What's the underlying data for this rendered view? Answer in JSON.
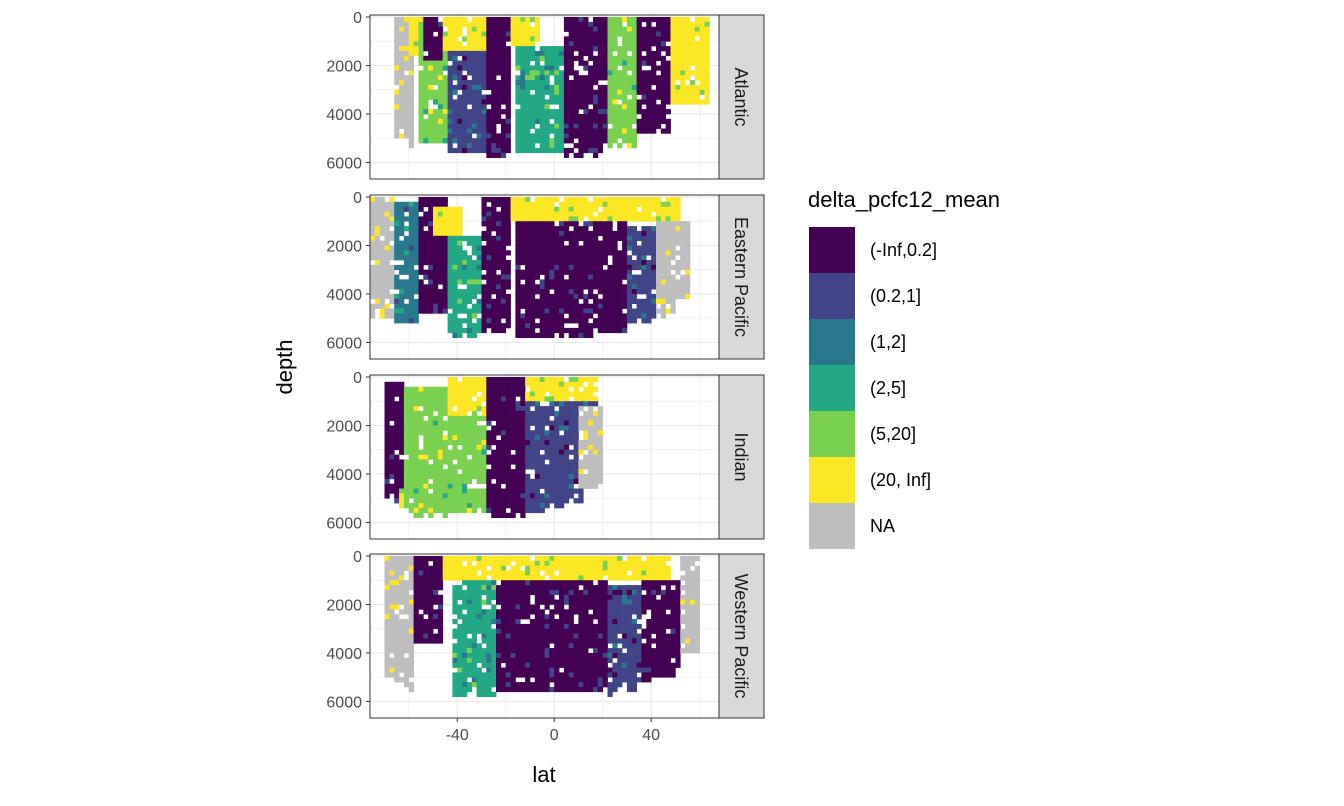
{
  "chart_data": {
    "type": "heatmap",
    "xlabel": "lat",
    "ylabel": "depth",
    "xlim": [
      -76,
      68
    ],
    "ylim": [
      0,
      6600
    ],
    "y_reversed": true,
    "x_ticks": [
      -40,
      0,
      40
    ],
    "x_tick_labels": [
      "-40",
      "0",
      "40"
    ],
    "y_ticks": [
      0,
      2000,
      4000,
      6000
    ],
    "y_tick_labels": [
      "0",
      "2000",
      "4000",
      "6000"
    ],
    "grid": true,
    "legend_position": "right",
    "legend": {
      "title": "delta_pcfc12_mean",
      "entries": [
        {
          "label": "(-Inf,0.2]",
          "color": "#440154"
        },
        {
          "label": "(0.2,1]",
          "color": "#414487"
        },
        {
          "label": "(1,2]",
          "color": "#2A788E"
        },
        {
          "label": "(2,5]",
          "color": "#22A884"
        },
        {
          "label": "(5,20]",
          "color": "#7AD151"
        },
        {
          "label": "(20, Inf]",
          "color": "#FDE725"
        },
        {
          "label": "NA",
          "color": "#BEBEBE"
        }
      ]
    },
    "panels": [
      {
        "name": "Atlantic",
        "lat_range": [
          -70,
          64
        ],
        "regions": [
          {
            "lat": [
              -66,
              -58
            ],
            "depth": [
              0,
              6000
            ],
            "class": "NA"
          },
          {
            "lat": [
              -60,
              -55
            ],
            "depth": [
              0,
              1600
            ],
            "class": "(20, Inf]"
          },
          {
            "lat": [
              -56,
              -42
            ],
            "depth": [
              200,
              5200
            ],
            "class": "(5,20]"
          },
          {
            "lat": [
              -54,
              -46
            ],
            "depth": [
              0,
              1800
            ],
            "class": "(-Inf,0.2]"
          },
          {
            "lat": [
              -46,
              -26
            ],
            "depth": [
              0,
              1400
            ],
            "class": "(20, Inf]"
          },
          {
            "lat": [
              -44,
              -28
            ],
            "depth": [
              1400,
              5600
            ],
            "class": "(0.2,1]"
          },
          {
            "lat": [
              -28,
              -18
            ],
            "depth": [
              0,
              5800
            ],
            "class": "(-Inf,0.2]"
          },
          {
            "lat": [
              -18,
              -6
            ],
            "depth": [
              0,
              1200
            ],
            "class": "(20, Inf]"
          },
          {
            "lat": [
              -16,
              4
            ],
            "depth": [
              1200,
              5600
            ],
            "class": "(2,5]"
          },
          {
            "lat": [
              4,
              22
            ],
            "depth": [
              0,
              5800
            ],
            "class": "(-Inf,0.2]"
          },
          {
            "lat": [
              22,
              34
            ],
            "depth": [
              0,
              5400
            ],
            "class": "(5,20]"
          },
          {
            "lat": [
              34,
              48
            ],
            "depth": [
              0,
              4800
            ],
            "class": "(-Inf,0.2]"
          },
          {
            "lat": [
              48,
              64
            ],
            "depth": [
              0,
              3600
            ],
            "class": "(20, Inf]"
          }
        ]
      },
      {
        "name": "Eastern Pacific",
        "lat_range": [
          -76,
          56
        ],
        "regions": [
          {
            "lat": [
              -76,
              -66
            ],
            "depth": [
              0,
              5000
            ],
            "class": "NA"
          },
          {
            "lat": [
              -66,
              -56
            ],
            "depth": [
              200,
              5200
            ],
            "class": "(1,2]"
          },
          {
            "lat": [
              -56,
              -44
            ],
            "depth": [
              0,
              4800
            ],
            "class": "(-Inf,0.2]"
          },
          {
            "lat": [
              -50,
              -38
            ],
            "depth": [
              400,
              1600
            ],
            "class": "(20, Inf]"
          },
          {
            "lat": [
              -44,
              -30
            ],
            "depth": [
              1600,
              5800
            ],
            "class": "(2,5]"
          },
          {
            "lat": [
              -30,
              -18
            ],
            "depth": [
              0,
              5600
            ],
            "class": "(-Inf,0.2]"
          },
          {
            "lat": [
              -18,
              52
            ],
            "depth": [
              0,
              900
            ],
            "class": "(20, Inf]"
          },
          {
            "lat": [
              -16,
              30
            ],
            "depth": [
              900,
              5800
            ],
            "class": "(-Inf,0.2]"
          },
          {
            "lat": [
              30,
              42
            ],
            "depth": [
              1200,
              5600
            ],
            "class": "(0.2,1]"
          },
          {
            "lat": [
              42,
              56
            ],
            "depth": [
              1000,
              5200
            ],
            "class": "NA"
          }
        ]
      },
      {
        "name": "Indian",
        "lat_range": [
          -70,
          20
        ],
        "regions": [
          {
            "lat": [
              -70,
              -62
            ],
            "depth": [
              200,
              5600
            ],
            "class": "(-Inf,0.2]"
          },
          {
            "lat": [
              -64,
              -58
            ],
            "depth": [
              4600,
              6000
            ],
            "class": "(20, Inf]"
          },
          {
            "lat": [
              -62,
              -44
            ],
            "depth": [
              400,
              5800
            ],
            "class": "(5,20]"
          },
          {
            "lat": [
              -44,
              -28
            ],
            "depth": [
              0,
              1600
            ],
            "class": "(20, Inf]"
          },
          {
            "lat": [
              -44,
              -28
            ],
            "depth": [
              1600,
              5600
            ],
            "class": "(5,20]"
          },
          {
            "lat": [
              -28,
              -12
            ],
            "depth": [
              0,
              5800
            ],
            "class": "(-Inf,0.2]"
          },
          {
            "lat": [
              -12,
              18
            ],
            "depth": [
              0,
              900
            ],
            "class": "(20, Inf]"
          },
          {
            "lat": [
              -12,
              18
            ],
            "depth": [
              900,
              5600
            ],
            "class": "(0.2,1]"
          },
          {
            "lat": [
              10,
              20
            ],
            "depth": [
              1200,
              4600
            ],
            "class": "NA"
          }
        ]
      },
      {
        "name": "Western Pacific",
        "lat_range": [
          -76,
          60
        ],
        "regions": [
          {
            "lat": [
              -70,
              -58
            ],
            "depth": [
              0,
              6000
            ],
            "class": "NA"
          },
          {
            "lat": [
              -58,
              -46
            ],
            "depth": [
              0,
              3600
            ],
            "class": "(-Inf,0.2]"
          },
          {
            "lat": [
              -46,
              48
            ],
            "depth": [
              0,
              1000
            ],
            "class": "(20, Inf]"
          },
          {
            "lat": [
              -42,
              -24
            ],
            "depth": [
              1000,
              5800
            ],
            "class": "(2,5]"
          },
          {
            "lat": [
              -24,
              22
            ],
            "depth": [
              1000,
              5600
            ],
            "class": "(-Inf,0.2]"
          },
          {
            "lat": [
              22,
              36
            ],
            "depth": [
              1200,
              5800
            ],
            "class": "(0.2,1]"
          },
          {
            "lat": [
              36,
              52
            ],
            "depth": [
              1000,
              5400
            ],
            "class": "(-Inf,0.2]"
          },
          {
            "lat": [
              52,
              60
            ],
            "depth": [
              0,
              4000
            ],
            "class": "NA"
          }
        ]
      }
    ]
  }
}
